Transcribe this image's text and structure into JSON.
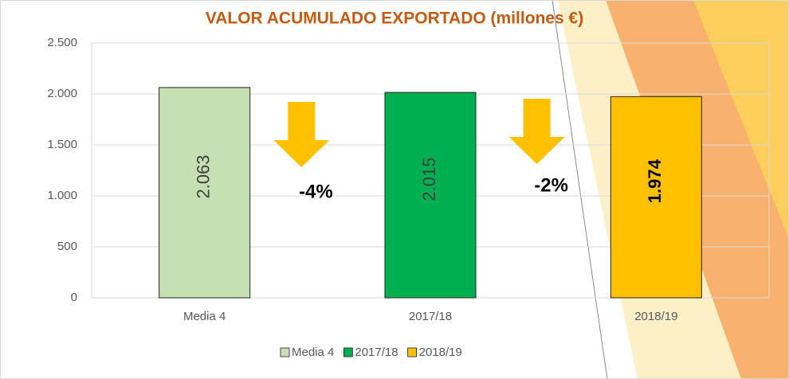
{
  "chart_data": {
    "type": "bar",
    "title": "VALOR ACUMULADO EXPORTADO  (millones €)",
    "categories": [
      "Media 4",
      "2017/18",
      "2018/19"
    ],
    "values": [
      2063,
      2015,
      1974
    ],
    "value_labels": [
      "2.063",
      "2.015",
      "1.974"
    ],
    "colors": [
      "#c6e0b4",
      "#00b050",
      "#ffc000"
    ],
    "ylim": [
      0,
      2500
    ],
    "yticks": [
      0,
      500,
      {
        "value": 1000,
        "label": "1.000"
      },
      {
        "value": 1500,
        "label": "1.500"
      },
      {
        "value": 2000,
        "label": "2.000"
      },
      {
        "value": 2500,
        "label": "2.500"
      }
    ],
    "grid": true,
    "legend": "bottom",
    "annotations": [
      "-4%",
      "-2%"
    ]
  }
}
